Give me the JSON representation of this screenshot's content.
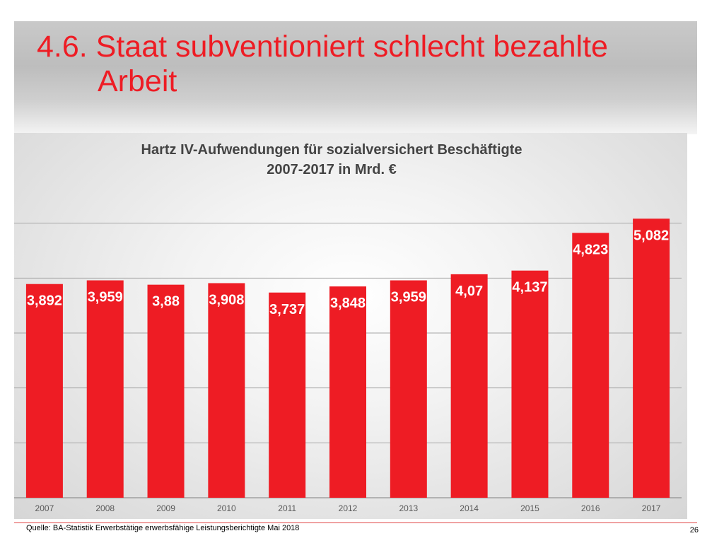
{
  "slide": {
    "title_line1": "4.6. Staat subventioniert schlecht bezahlte",
    "title_line2": "Arbeit",
    "source": "Quelle: BA-Statistik Erwerbstätige erwerbsfähige Leistungsberichtigte Mai 2018",
    "page_number": "26"
  },
  "colors": {
    "title": "#ee1c24",
    "bar": "#ee1c24",
    "bar_label": "#ffffff",
    "chart_title": "#444444",
    "gridline": "#a6a6a6"
  },
  "chart_data": {
    "type": "bar",
    "title_line1": "Hartz IV-Aufwendungen für sozialversichert Beschäftigte",
    "title_line2": "2007-2017 in Mrd. €",
    "categories": [
      "2007",
      "2008",
      "2009",
      "2010",
      "2011",
      "2012",
      "2013",
      "2014",
      "2015",
      "2016",
      "2017"
    ],
    "values": [
      3.892,
      3.959,
      3.88,
      3.908,
      3.737,
      3.848,
      3.959,
      4.07,
      4.137,
      4.823,
      5.082
    ],
    "data_labels": [
      "3,892",
      "3,959",
      "3,88",
      "3,908",
      "3,737",
      "3,848",
      "3,959",
      "4,07",
      "4,137",
      "4,823",
      "5,082"
    ],
    "ylim": [
      0,
      6
    ],
    "grid": true,
    "xlabel": "",
    "ylabel": ""
  }
}
